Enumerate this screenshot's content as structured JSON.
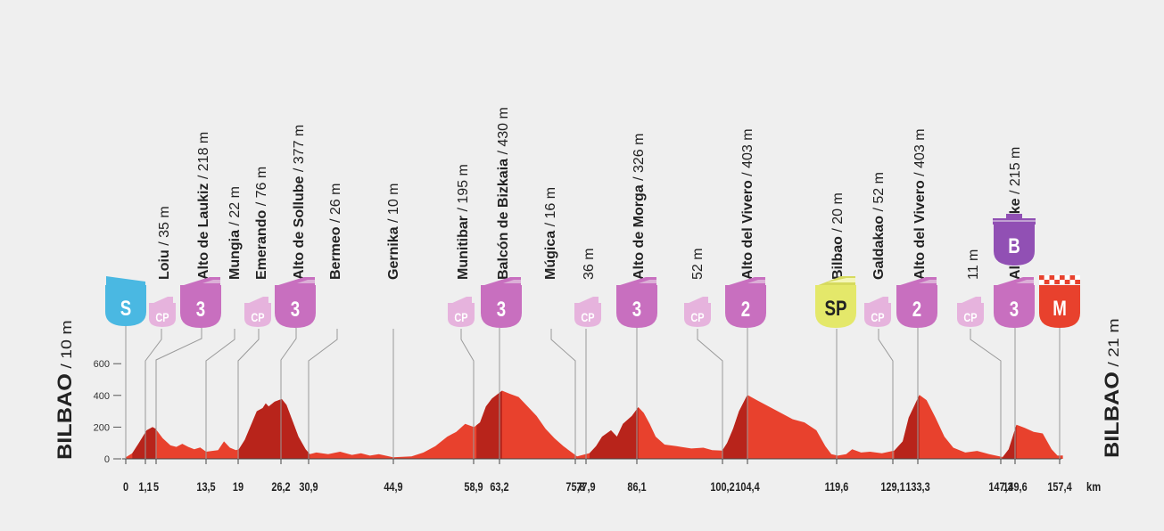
{
  "start": {
    "city": "BILBAO",
    "alt": " / 10 m"
  },
  "finish": {
    "city": "BILBAO",
    "alt": " / 21 m"
  },
  "unit": "km",
  "y_ticks": [
    0,
    200,
    400,
    600
  ],
  "x_ticks": [
    "0",
    "1,1",
    "5",
    "13,5",
    "19",
    "26,2",
    "30,9",
    "44,9",
    "58,9",
    "63,2",
    "75,8",
    "77,9",
    "86,1",
    "100,2",
    "104,4",
    "119,6",
    "129,1",
    "133,3",
    "147,3",
    "149,6",
    "157,4"
  ],
  "waypoints": [
    {
      "name": "Loiu",
      "alt": " / 35 m"
    },
    {
      "name": "Alto de Laukiz",
      "alt": " / 218 m"
    },
    {
      "name": "Mungia",
      "alt": " / 22 m"
    },
    {
      "name": "Emerando",
      "alt": " / 76 m"
    },
    {
      "name": "Alto de Sollube",
      "alt": " / 377 m"
    },
    {
      "name": "Bermeo",
      "alt": " / 26 m"
    },
    {
      "name": "Gernika",
      "alt": " / 10 m"
    },
    {
      "name": "Munitibar",
      "alt": " / 195 m"
    },
    {
      "name": "Balcón de Bizkaia",
      "alt": " / 430 m"
    },
    {
      "name": "Múgica",
      "alt": " / 16 m"
    },
    {
      "name": "",
      "alt": "36 m"
    },
    {
      "name": "Alto de Morga",
      "alt": " / 326 m"
    },
    {
      "name": "",
      "alt": "52 m"
    },
    {
      "name": "Alto del Vivero",
      "alt": " / 403 m"
    },
    {
      "name": "Bilbao",
      "alt": " / 20 m"
    },
    {
      "name": "Galdakao",
      "alt": " / 52 m"
    },
    {
      "name": "Alto del Vivero",
      "alt": " / 403 m"
    },
    {
      "name": "",
      "alt": "11 m"
    },
    {
      "name": "Alto de Pike",
      "alt": " / 215 m"
    }
  ],
  "badges": [
    {
      "label": "S",
      "type": "start",
      "color": "#4ab8e2"
    },
    {
      "label": "CP",
      "type": "checkpoint",
      "color": "#e6b3dd"
    },
    {
      "label": "3",
      "type": "climb",
      "color": "#c86fbf"
    },
    {
      "label": "CP",
      "type": "checkpoint",
      "color": "#e6b3dd"
    },
    {
      "label": "3",
      "type": "climb",
      "color": "#c86fbf"
    },
    {
      "label": "CP",
      "type": "checkpoint",
      "color": "#e6b3dd"
    },
    {
      "label": "3",
      "type": "climb",
      "color": "#c86fbf"
    },
    {
      "label": "CP",
      "type": "checkpoint",
      "color": "#e6b3dd"
    },
    {
      "label": "3",
      "type": "climb",
      "color": "#c86fbf"
    },
    {
      "label": "CP",
      "type": "checkpoint",
      "color": "#e6b3dd"
    },
    {
      "label": "2",
      "type": "climb",
      "color": "#c86fbf"
    },
    {
      "label": "SP",
      "type": "sprint",
      "color": "#e4e86a"
    },
    {
      "label": "CP",
      "type": "checkpoint",
      "color": "#e6b3dd"
    },
    {
      "label": "2",
      "type": "climb",
      "color": "#c86fbf"
    },
    {
      "label": "CP",
      "type": "checkpoint",
      "color": "#e6b3dd"
    },
    {
      "label": "3",
      "type": "climb",
      "color": "#c86fbf"
    },
    {
      "label": "B",
      "type": "bonus",
      "color": "#9150b4"
    },
    {
      "label": "M",
      "type": "finish",
      "color": "#e8412d"
    }
  ],
  "colors": {
    "profile": "#e8412d",
    "profile_dark": "#b8241b",
    "leader": "#9a9a9a",
    "text": "#222222",
    "background": "#efefef"
  }
}
